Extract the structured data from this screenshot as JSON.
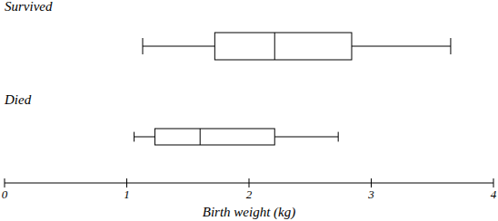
{
  "chart_data": {
    "type": "box",
    "orientation": "horizontal",
    "xlabel": "Birth weight (kg)",
    "xlim": [
      0,
      4
    ],
    "xticks": [
      0,
      1,
      2,
      3,
      4
    ],
    "series": [
      {
        "name": "Survived",
        "min": 1.13,
        "q1": 1.72,
        "median": 2.21,
        "q3": 2.84,
        "max": 3.65
      },
      {
        "name": "Died",
        "min": 1.06,
        "q1": 1.23,
        "median": 1.6,
        "q3": 2.21,
        "max": 2.73
      }
    ]
  }
}
